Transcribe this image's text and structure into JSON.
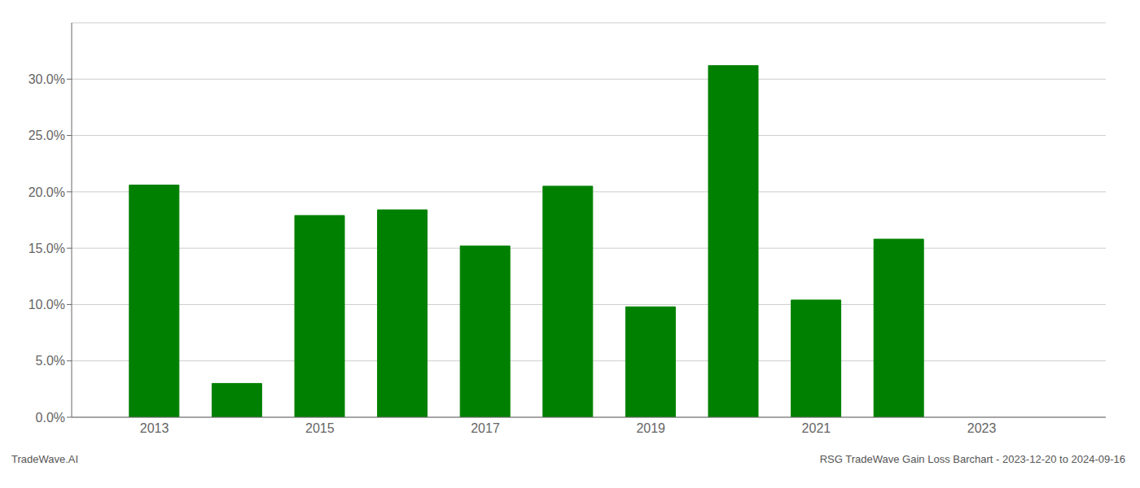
{
  "chart_data": {
    "type": "bar",
    "x": [
      2013,
      2014,
      2015,
      2016,
      2017,
      2018,
      2019,
      2020,
      2021,
      2022,
      2023
    ],
    "values": [
      0.206,
      0.03,
      0.179,
      0.184,
      0.152,
      0.205,
      0.098,
      0.312,
      0.104,
      0.158,
      0.0
    ],
    "color": "#008000",
    "xlim": [
      2012.0,
      2024.5
    ],
    "xticks": [
      2013,
      2015,
      2017,
      2019,
      2021,
      2023
    ],
    "ylim": [
      0,
      0.35
    ],
    "yticks": [
      {
        "value": 0.0,
        "label": "0.0%"
      },
      {
        "value": 0.05,
        "label": "5.0%"
      },
      {
        "value": 0.1,
        "label": "10.0%"
      },
      {
        "value": 0.15,
        "label": "15.0%"
      },
      {
        "value": 0.2,
        "label": "20.0%"
      },
      {
        "value": 0.25,
        "label": "25.0%"
      },
      {
        "value": 0.3,
        "label": "30.0%"
      }
    ],
    "grid": true,
    "annotations": [
      "TradeWave.AI",
      "RSG TradeWave Gain Loss Barchart - 2023-12-20 to 2024-09-16"
    ]
  }
}
